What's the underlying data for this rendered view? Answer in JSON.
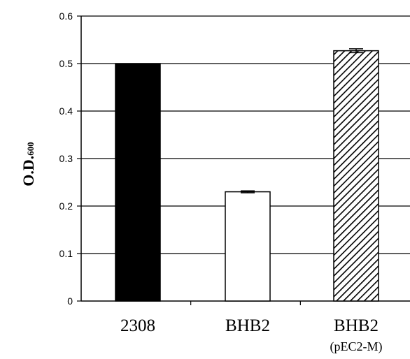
{
  "chart_data": {
    "type": "bar",
    "ylabel": {
      "main": "O.D.",
      "subscript": "600"
    },
    "xlabel": "",
    "ylim": [
      0,
      0.6
    ],
    "yticks": [
      0,
      0.1,
      0.2,
      0.3,
      0.4,
      0.5,
      0.6
    ],
    "ytick_labels": [
      "0",
      "0.1",
      "0.2",
      "0.3",
      "0.4",
      "0.5",
      "0.6"
    ],
    "grid": true,
    "categories": [
      "2308",
      "BHB2",
      "BHB2"
    ],
    "category_sublabels": [
      "",
      "",
      "(pEC2-M)"
    ],
    "values": [
      0.5,
      0.23,
      0.527
    ],
    "errors": [
      0.0,
      0.002,
      0.004
    ],
    "bar_fills": [
      "solid-black",
      "white",
      "diagonal-hatch"
    ],
    "colors": {
      "solid": "#000000",
      "empty": "#ffffff",
      "hatch": "#000000"
    }
  }
}
